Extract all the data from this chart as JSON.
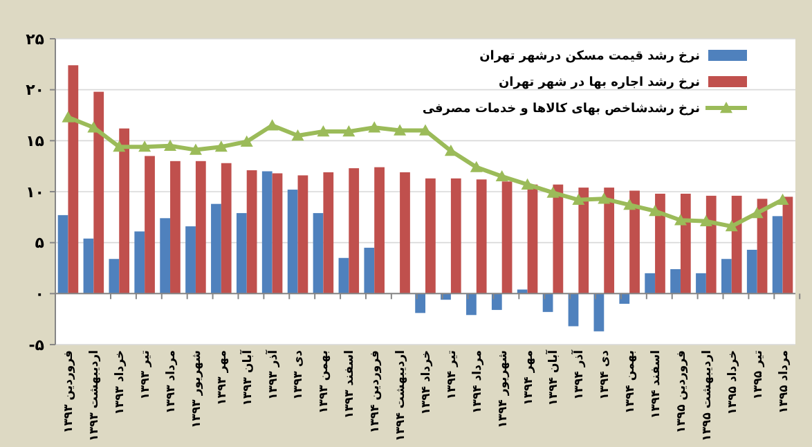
{
  "chart_data": {
    "type": "bar",
    "categories": [
      "فروردین ۱۳۹۳",
      "اردیبهشت ۱۳۹۳",
      "خرداد ۱۳۹۳",
      "تیر ۱۳۹۳",
      "مرداد ۱۳۹۳",
      "شهریور ۱۳۹۳",
      "مهر ۱۳۹۳",
      "آبان ۱۳۹۳",
      "آذر ۱۳۹۳",
      "دی ۱۳۹۳",
      "بهمن ۱۳۹۳",
      "اسفند ۱۳۹۳",
      "فروردین ۱۳۹۴",
      "اردیبهشت ۱۳۹۴",
      "خرداد ۱۳۹۴",
      "تیر ۱۳۹۴",
      "مرداد ۱۳۹۴",
      "شهریور ۱۳۹۴",
      "مهر ۱۳۹۴",
      "آبان ۱۳۹۴",
      "آذر ۱۳۹۴",
      "دی ۱۳۹۴",
      "بهمن ۱۳۹۴",
      "اسفند ۱۳۹۴",
      "فروردین ۱۳۹۵",
      "اردیبهشت ۱۳۹۵",
      "خرداد ۱۳۹۵",
      "تیر ۱۳۹۵",
      "مرداد ۱۳۹۵"
    ],
    "series": [
      {
        "name": "نرخ رشد قیمت مسکن درشهر تهران",
        "color": "#4f81bd",
        "values": [
          7.7,
          5.4,
          3.4,
          6.1,
          7.4,
          6.6,
          8.8,
          7.9,
          12.0,
          10.2,
          7.9,
          3.5,
          4.5,
          null,
          -1.9,
          -0.6,
          -2.1,
          -1.6,
          0.4,
          -1.8,
          -3.2,
          -3.7,
          -1.0,
          2.0,
          2.4,
          2.0,
          3.4,
          4.3,
          7.6
        ]
      },
      {
        "name": "نرخ رشد اجاره بها در شهر تهران",
        "color": "#c0504d",
        "values": [
          22.4,
          19.8,
          16.2,
          13.5,
          13.0,
          13.0,
          12.8,
          12.1,
          11.8,
          11.6,
          11.9,
          12.3,
          12.4,
          11.9,
          11.3,
          11.3,
          11.2,
          11.0,
          10.7,
          10.7,
          10.4,
          10.4,
          10.1,
          9.8,
          9.8,
          9.6,
          9.6,
          9.3,
          9.5
        ]
      },
      {
        "name": "نرخ رشدشاخص بهای کالاها و خدمات مصرفی",
        "type": "line",
        "color": "#9bbb59",
        "marker": "triangle",
        "values": [
          17.3,
          16.3,
          14.4,
          14.4,
          14.5,
          14.1,
          14.4,
          14.9,
          16.5,
          15.5,
          15.9,
          15.9,
          16.3,
          16.0,
          16.0,
          14.0,
          12.4,
          11.5,
          10.7,
          9.9,
          9.2,
          9.3,
          8.7,
          8.1,
          7.2,
          7.1,
          6.6,
          7.9,
          9.2
        ]
      }
    ],
    "ylim": [
      -5,
      25
    ],
    "yticks": [
      {
        "value": -5,
        "label": "-۵"
      },
      {
        "value": 0,
        "label": "۰"
      },
      {
        "value": 5,
        "label": "۵"
      },
      {
        "value": 10,
        "label": "۱۰"
      },
      {
        "value": 15,
        "label": "۱۵"
      },
      {
        "value": 20,
        "label": "۲۰"
      },
      {
        "value": 25,
        "label": "۲۵"
      }
    ],
    "grid": "y",
    "legend": "top right"
  }
}
